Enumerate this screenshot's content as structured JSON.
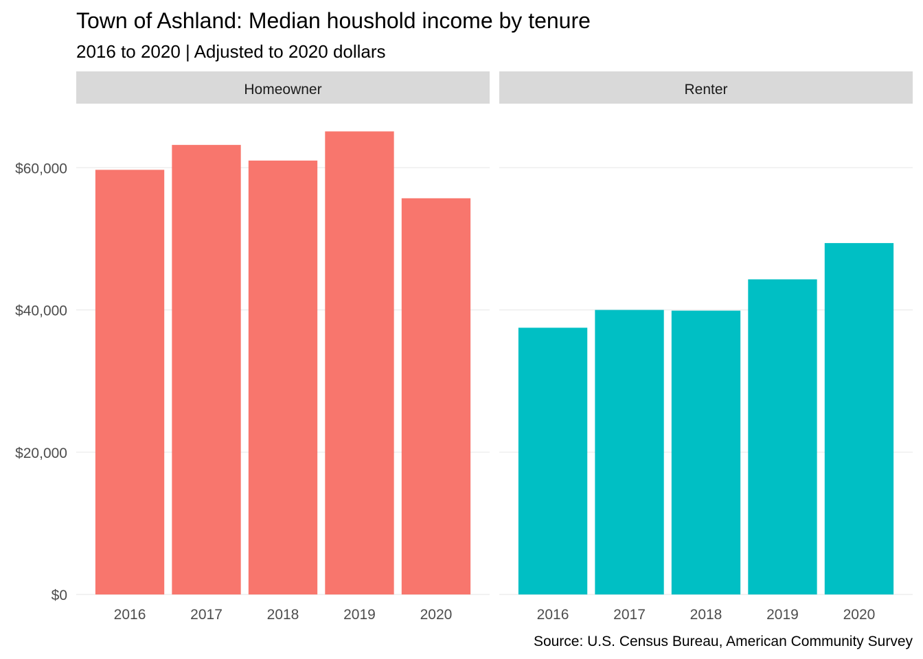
{
  "chart_data": {
    "type": "bar",
    "title": "Town of Ashland: Median houshold income by tenure",
    "subtitle": "2016 to 2020 | Adjusted to 2020 dollars",
    "caption": "Source: U.S. Census Bureau, American Community Survey",
    "categories": [
      "2016",
      "2017",
      "2018",
      "2019",
      "2020"
    ],
    "ylim": [
      0,
      69000
    ],
    "y_ticks": [
      0,
      20000,
      40000,
      60000
    ],
    "y_tick_labels": [
      "$0",
      "$20,000",
      "$40,000",
      "$60,000"
    ],
    "grid": true,
    "legend": "none",
    "facets": [
      {
        "name": "Homeowner",
        "color": "#F8766D",
        "values": [
          59700,
          63200,
          61000,
          65100,
          55700
        ]
      },
      {
        "name": "Renter",
        "color": "#00BFC4",
        "values": [
          37500,
          40000,
          39900,
          44300,
          49400
        ]
      }
    ]
  }
}
